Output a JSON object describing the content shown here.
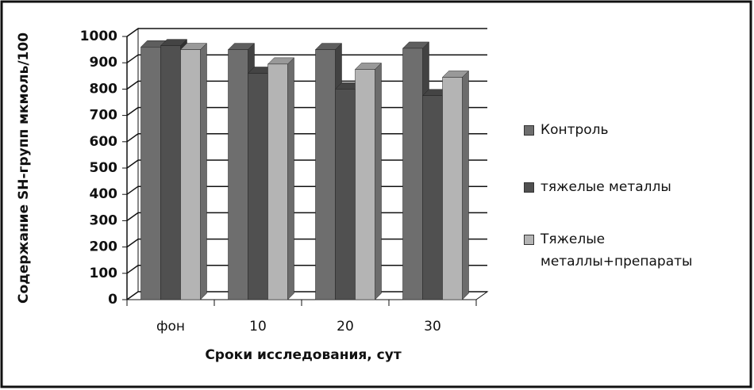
{
  "chart_data": {
    "type": "bar3d",
    "y_label": "Содержание SH-групп мкмоль/100",
    "x_label": "Сроки исследования, сут",
    "categories": [
      "фон",
      "10",
      "20",
      "30"
    ],
    "series": [
      {
        "name": "Контроль",
        "color": "#6e6e6e",
        "values": [
          960,
          950,
          950,
          955
        ]
      },
      {
        "name": "тяжелые металлы",
        "color": "#505050",
        "values": [
          965,
          860,
          800,
          775
        ]
      },
      {
        "name": "Тяжелые металлы+препараты",
        "color": "#b4b4b4",
        "values": [
          950,
          895,
          875,
          845
        ]
      }
    ],
    "ylim": [
      0,
      1000
    ],
    "yticks": [
      0,
      100,
      200,
      300,
      400,
      500,
      600,
      700,
      800,
      900,
      1000
    ],
    "grid": true,
    "legend": "right"
  }
}
